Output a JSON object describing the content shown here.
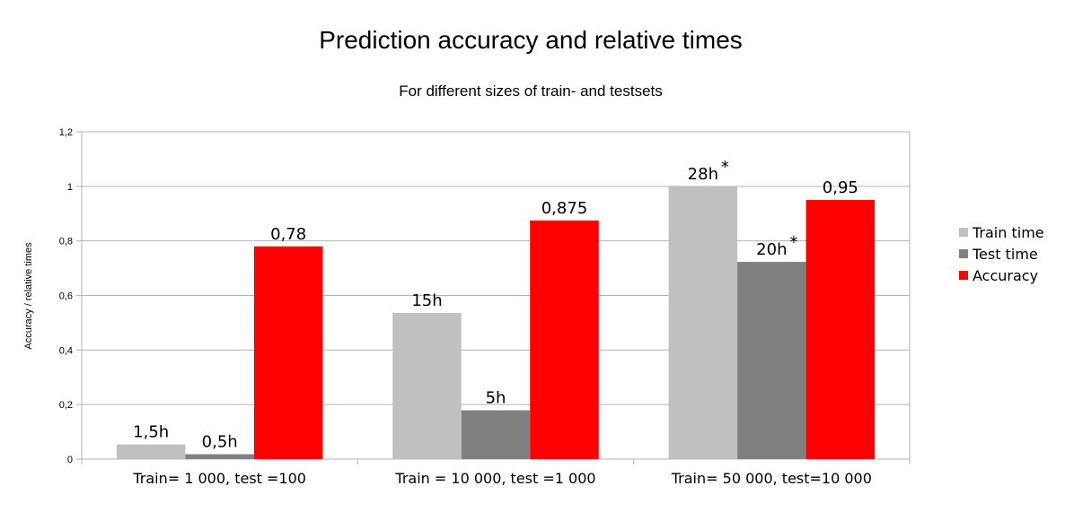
{
  "chart_data": {
    "type": "bar",
    "title": "Prediction accuracy and relative times",
    "subtitle": "For different sizes of train- and testsets",
    "xlabel": "",
    "ylabel": "Accuracy / relative times",
    "ylim": [
      0,
      1.2
    ],
    "y_ticks": [
      "0",
      "0,2",
      "0,4",
      "0,6",
      "0,8",
      "1",
      "1,2"
    ],
    "grid": true,
    "legend_position": "right",
    "categories": [
      "Train= 1 000, test =100",
      "Train = 10 000, test =1 000",
      "Train= 50 000, test=10 000"
    ],
    "series": [
      {
        "name": "Train time",
        "color": "#c0c0c0",
        "values": [
          0.0536,
          0.536,
          1.0
        ],
        "labels": [
          "1,5h",
          "15h",
          "28h"
        ],
        "label_marks": [
          "",
          "",
          "*"
        ]
      },
      {
        "name": "Test time",
        "color": "#808080",
        "values": [
          0.0179,
          0.179,
          0.723
        ],
        "labels": [
          "0,5h",
          "5h",
          "20h"
        ],
        "label_marks": [
          "",
          "",
          "*"
        ]
      },
      {
        "name": "Accuracy",
        "color": "#ff0000",
        "values": [
          0.78,
          0.875,
          0.95
        ],
        "labels": [
          "0,78",
          "0,875",
          "0,95"
        ],
        "label_marks": [
          "",
          "",
          ""
        ]
      }
    ]
  }
}
